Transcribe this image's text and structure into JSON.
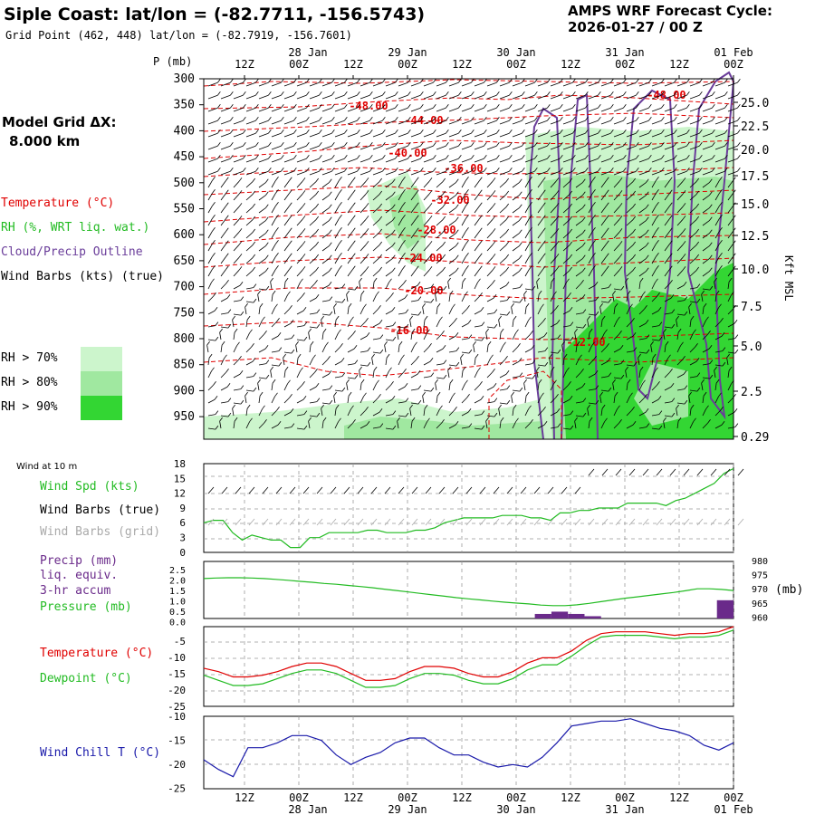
{
  "header": {
    "title": "Siple Coast:  lat/lon = (-82.7711, -156.5743)",
    "grid_point": "Grid Point (462, 448) lat/lon = (-82.7919, -156.7601)",
    "cycle_line1": "AMPS WRF Forecast Cycle:",
    "cycle_line2": "2026-01-27 / 00  Z"
  },
  "left_panel": {
    "pressure_axis_label": "P (mb)",
    "model_grid_line1": "Model Grid ΔX:",
    "model_grid_line2": "8.000 km",
    "legend_temperature": "Temperature (°C)",
    "legend_rh": "RH (%, WRT liq. wat.)",
    "legend_cloud": "Cloud/Precip Outline",
    "legend_wind": "Wind Barbs (kts) (true)",
    "rh_gt70": "RH > 70%",
    "rh_gt80": "RH > 80%",
    "rh_gt90": "RH > 90%",
    "wind_at_10m": "Wind at 10 m",
    "wind_spd": "Wind Spd (kts)",
    "wind_barbs_true": "Wind Barbs (true)",
    "wind_barbs_grid": "Wind Barbs (grid)",
    "precip_line1": "Precip (mm)",
    "precip_line2": "liq. equiv.",
    "precip_line3": "3-hr accum",
    "pressure": "Pressure (mb)",
    "temperature": "Temperature (°C)",
    "dewpoint": "Dewpoint (°C)",
    "wind_chill": "Wind Chill T (°C)",
    "kft_msl": "Kft MSL",
    "mb_unit": "(mb)"
  },
  "colors": {
    "temperature": "#e00000",
    "rh": "#22bb22",
    "cloud": "#6a3d9a",
    "precip_bar": "#6a2a8a",
    "wind_chill": "#1a1aaa",
    "rh70": "#ccf5cc",
    "rh80": "#a0e8a0",
    "rh90": "#33d633",
    "grid_barb": "#aaaaaa"
  },
  "time_axis": {
    "top_hours": [
      "12Z",
      "00Z",
      "12Z",
      "00Z",
      "12Z",
      "00Z",
      "12Z",
      "00Z",
      "12Z",
      "00Z"
    ],
    "dates": [
      "28 Jan",
      "29 Jan",
      "30 Jan",
      "31 Jan",
      "01 Feb"
    ]
  },
  "chart_data": [
    {
      "type": "heatmap",
      "name": "cross-section",
      "x": "forecast time",
      "y_pressure_ticks": [
        300,
        350,
        400,
        450,
        500,
        550,
        600,
        650,
        700,
        750,
        800,
        850,
        900,
        950
      ],
      "y_height_ticks": [
        "25.0",
        "22.5",
        "20.0",
        "17.5",
        "15.0",
        "12.5",
        "10.0",
        "7.5",
        "5.0",
        "2.5",
        "0.29"
      ],
      "temperature_contour_labels": [
        "-48.00",
        "-44.00",
        "-40.00",
        "-36.00",
        "-32.00",
        "-28.00",
        "-24.00",
        "-20.00",
        "-16.00",
        "-12.00",
        "-48.00"
      ]
    },
    {
      "type": "line",
      "name": "wind speed 10 m",
      "y_ticks": [
        "18",
        "15",
        "12",
        "9",
        "6",
        "3",
        "0"
      ],
      "ylim": [
        0,
        18
      ],
      "wind_speed_kts": [
        6,
        6.5,
        6.5,
        4,
        2.5,
        3.5,
        3,
        2.5,
        2.5,
        1,
        1,
        3,
        3,
        4,
        4,
        4,
        4,
        4.5,
        4.5,
        4,
        4,
        4,
        4.5,
        4.5,
        5,
        6,
        6.5,
        7,
        7,
        7,
        7,
        7.5,
        7.5,
        7.5,
        7,
        7,
        6.5,
        8,
        8,
        8.5,
        8.5,
        9,
        9,
        9,
        10,
        10,
        10,
        10,
        9.5,
        10.5,
        11,
        12,
        13,
        14,
        16,
        17
      ]
    },
    {
      "type": "line",
      "name": "precip and pressure",
      "precip_y_ticks": [
        "2.5",
        "2.0",
        "1.5",
        "1.0",
        "0.5",
        "0.0"
      ],
      "pressure_y_ticks": [
        "980",
        "975",
        "970",
        "965",
        "960"
      ],
      "pressure_ylim": [
        960,
        980
      ],
      "pressure_mb": [
        974,
        974.2,
        974.3,
        974.3,
        974.2,
        974,
        973.7,
        973.4,
        973,
        972.7,
        972.3,
        972,
        971.6,
        971.2,
        970.8,
        970.3,
        969.8,
        969.3,
        968.8,
        968.3,
        967.8,
        967.3,
        966.9,
        966.5,
        966.1,
        965.7,
        965.4,
        965.1,
        964.7,
        964.5,
        964.5,
        964.8,
        965.3,
        965.9,
        966.5,
        967.1,
        967.6,
        968.1,
        968.6,
        969.1,
        969.7,
        970.4,
        970.4,
        970.2,
        969.8
      ],
      "precip_mm_3hr": [
        0,
        0,
        0,
        0,
        0,
        0,
        0,
        0,
        0,
        0,
        0,
        0,
        0,
        0,
        0,
        0,
        0,
        0,
        0,
        0,
        0.2,
        0.3,
        0.2,
        0.1,
        0,
        0,
        0,
        0,
        0,
        0,
        0,
        0.8
      ]
    },
    {
      "type": "line",
      "name": "temperature and dewpoint",
      "y_ticks": [
        "-5",
        "-10",
        "-15",
        "-20",
        "-25"
      ],
      "ylim": [
        -25,
        -2
      ],
      "temperature_c": [
        -14,
        -15,
        -16.5,
        -16.5,
        -16,
        -15,
        -13.5,
        -12.5,
        -12.5,
        -13.5,
        -15.5,
        -17.5,
        -17.5,
        -17,
        -15,
        -13.5,
        -13.5,
        -14,
        -15.5,
        -16.5,
        -16.5,
        -15,
        -12.5,
        -11,
        -11,
        -9,
        -6,
        -4,
        -3.5,
        -3.5,
        -3.5,
        -4,
        -4.5,
        -4,
        -4,
        -3.5,
        -2
      ],
      "dewpoint_c": [
        -16,
        -17.5,
        -19,
        -19,
        -18.5,
        -17,
        -15.5,
        -14.5,
        -14.5,
        -15.5,
        -17.5,
        -19.5,
        -19.5,
        -19,
        -17,
        -15.5,
        -15.5,
        -16,
        -17.5,
        -18.5,
        -18.5,
        -17,
        -14.5,
        -13,
        -13,
        -10.5,
        -7.5,
        -5,
        -4.5,
        -4.5,
        -4.5,
        -5,
        -5.5,
        -5,
        -5,
        -4.5,
        -3
      ]
    },
    {
      "type": "line",
      "name": "wind chill",
      "y_ticks": [
        "-10",
        "-15",
        "-20",
        "-25"
      ],
      "ylim": [
        -25,
        -10
      ],
      "wind_chill_c": [
        -19,
        -21,
        -22.5,
        -16.5,
        -16.5,
        -15.5,
        -14,
        -14,
        -15,
        -18,
        -20,
        -18.5,
        -17.5,
        -15.5,
        -14.5,
        -14.5,
        -16.5,
        -18,
        -18,
        -19.5,
        -20.5,
        -20,
        -20.5,
        -18.5,
        -15.5,
        -12,
        -11.5,
        -11,
        -11,
        -10.5,
        -11.5,
        -12.5,
        -13,
        -14,
        -16,
        -17,
        -15.5
      ]
    }
  ]
}
